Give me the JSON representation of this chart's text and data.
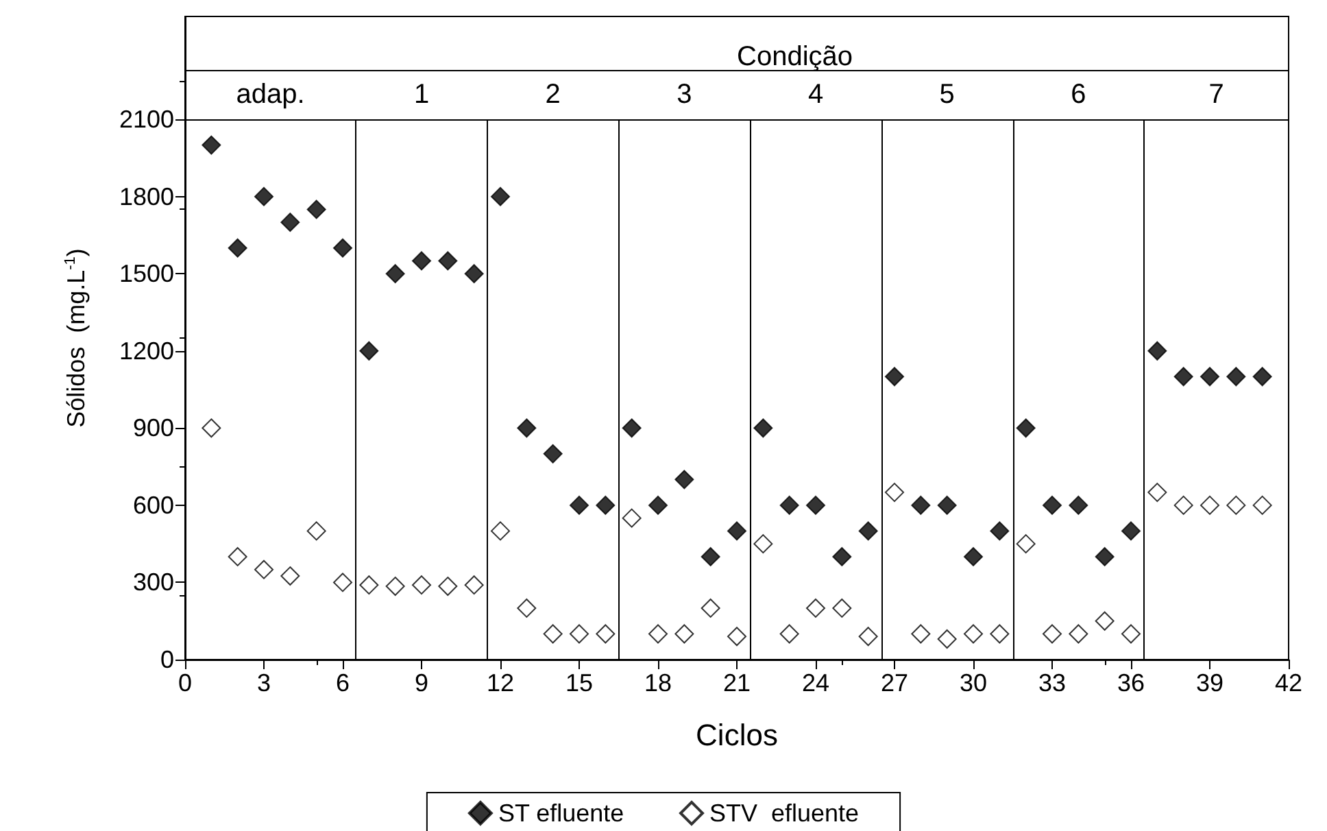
{
  "chart_data": {
    "type": "scatter",
    "xlabel": "Ciclos",
    "ylabel": "Sólidos  (mg.L$^{-1}$)",
    "xlim": [
      0,
      42
    ],
    "xticks": [
      0,
      3,
      6,
      9,
      12,
      15,
      18,
      21,
      24,
      27,
      30,
      33,
      36,
      39,
      42
    ],
    "ylim": [
      0,
      2500
    ],
    "yticks": [
      0,
      300,
      600,
      900,
      1200,
      1500,
      1800,
      2100
    ],
    "x": [
      1,
      2,
      3,
      4,
      5,
      6,
      7,
      8,
      9,
      10,
      11,
      12,
      13,
      14,
      15,
      16,
      17,
      18,
      19,
      20,
      21,
      22,
      23,
      24,
      25,
      26,
      27,
      28,
      29,
      30,
      31,
      32,
      33,
      34,
      35,
      36,
      37,
      38,
      39,
      40,
      41
    ],
    "series": [
      {
        "name": "ST efluente",
        "color": "#000000",
        "marker": "diamond",
        "values": [
          2000,
          1600,
          1800,
          1700,
          1750,
          1600,
          1200,
          1500,
          1550,
          1550,
          1500,
          1800,
          900,
          800,
          600,
          600,
          900,
          600,
          700,
          400,
          500,
          900,
          600,
          600,
          400,
          500,
          1100,
          600,
          600,
          400,
          500,
          900,
          600,
          600,
          400,
          500,
          1200,
          1100,
          1100,
          1100,
          1100
        ]
      },
      {
        "name": "STV  efluente",
        "color": "#ffffff",
        "marker": "diamond",
        "values": [
          900,
          400,
          350,
          325,
          500,
          300,
          290,
          285,
          290,
          285,
          290,
          500,
          200,
          100,
          100,
          100,
          550,
          100,
          100,
          200,
          90,
          450,
          100,
          200,
          200,
          90,
          650,
          100,
          80,
          100,
          100,
          450,
          100,
          100,
          150,
          100,
          650,
          600,
          600,
          600,
          600
        ]
      }
    ],
    "ref_lines": [
      {
        "axis": "y",
        "value": 2100,
        "label": null
      },
      {
        "axis": "y",
        "value": 2290,
        "label": null
      },
      {
        "axis": "x",
        "value": 6.5,
        "label": null
      },
      {
        "axis": "x",
        "value": 11.5,
        "label": null
      },
      {
        "axis": "x",
        "value": 16.5,
        "label": null
      },
      {
        "axis": "x",
        "value": 21.5,
        "label": null
      },
      {
        "axis": "x",
        "value": 26.5,
        "label": null
      },
      {
        "axis": "x",
        "value": 31.5,
        "label": null
      },
      {
        "axis": "x",
        "value": 36.5,
        "label": null
      }
    ],
    "annotations": [
      "Condição",
      "adap.",
      "1",
      "2",
      "3",
      "4",
      "5",
      "6",
      "7"
    ],
    "legend": "bottom",
    "grid": false
  }
}
